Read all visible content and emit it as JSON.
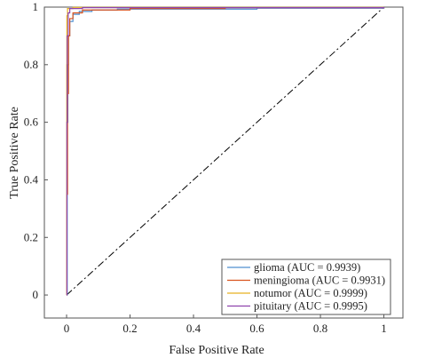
{
  "chart_data": {
    "type": "line",
    "xlabel": "False Positive Rate",
    "ylabel": "True Positive Rate",
    "xlim": [
      -0.07,
      1.06
    ],
    "ylim": [
      -0.08,
      1.0
    ],
    "xticks": [
      0,
      0.2,
      0.4,
      0.6,
      0.8,
      1
    ],
    "xtick_labels": [
      "0",
      "0.2",
      "0.4",
      "0.6",
      "0.8",
      "1"
    ],
    "yticks": [
      0,
      0.2,
      0.4,
      0.6,
      0.8,
      1
    ],
    "ytick_labels": [
      "0",
      "0.2",
      "0.4",
      "0.6",
      "0.8",
      "1"
    ],
    "grid": false,
    "legend_position": "bottom-right",
    "series": [
      {
        "name": "glioma (AUC = 0.9939)",
        "color": "#4f8fd0",
        "x": [
          0,
          0.002,
          0.004,
          0.006,
          0.01,
          0.02,
          0.04,
          0.08,
          0.16,
          0.6,
          1
        ],
        "y": [
          0,
          0.6,
          0.8,
          0.9,
          0.95,
          0.975,
          0.985,
          0.99,
          0.993,
          0.996,
          1
        ]
      },
      {
        "name": "meningioma (AUC = 0.9931)",
        "color": "#d9541e",
        "x": [
          0,
          0.001,
          0.003,
          0.006,
          0.01,
          0.02,
          0.05,
          0.2,
          0.5,
          1
        ],
        "y": [
          0,
          0.35,
          0.7,
          0.9,
          0.96,
          0.98,
          0.99,
          0.995,
          0.998,
          1
        ]
      },
      {
        "name": "notumor (AUC = 0.9999)",
        "color": "#e8b020",
        "x": [
          0,
          0.0005,
          0.001,
          0.003,
          0.02,
          1
        ],
        "y": [
          0,
          0.8,
          0.97,
          0.995,
          0.999,
          1
        ]
      },
      {
        "name": "pituitary (AUC = 0.9995)",
        "color": "#8e44ad",
        "x": [
          0,
          0.001,
          0.002,
          0.005,
          0.01,
          0.05,
          1
        ],
        "y": [
          0,
          0.6,
          0.9,
          0.98,
          0.995,
          0.998,
          1
        ]
      }
    ],
    "reference_line": {
      "x": [
        0,
        1
      ],
      "y": [
        0,
        1
      ],
      "color": "#000000",
      "style": "dash-dot"
    }
  }
}
